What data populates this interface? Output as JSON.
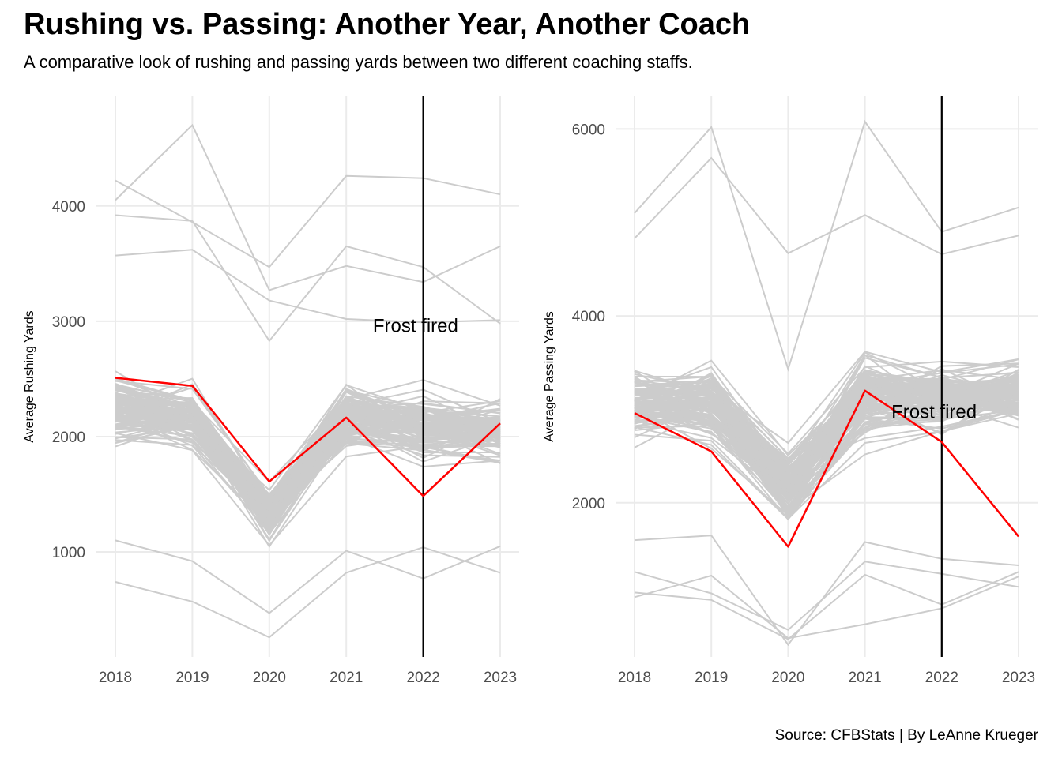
{
  "title": "Rushing vs. Passing: Another Year, Another Coach",
  "subtitle": "A comparative look of rushing and passing yards between two different coaching staffs.",
  "caption": "Source: CFBStats | By LeAnne Krueger",
  "colors": {
    "background_lines": "#cccccc",
    "highlight": "#ff0000",
    "event_line": "#000000",
    "grid": "#ebebeb",
    "tick_text": "#4d4d4d"
  },
  "chart_data": [
    {
      "type": "line",
      "title": "",
      "xlabel": "",
      "ylabel": "Average Rushing Yards",
      "x": [
        2018,
        2019,
        2020,
        2021,
        2022,
        2023
      ],
      "x_tick_labels": [
        "2018",
        "2019",
        "2020",
        "2021",
        "2022",
        "2023"
      ],
      "y_ticks": [
        1000,
        2000,
        3000,
        4000
      ],
      "y_tick_labels": [
        "1000",
        "2000",
        "3000",
        "4000"
      ],
      "ylim": [
        90,
        4950
      ],
      "grid": true,
      "highlight_series": {
        "values": [
          2510,
          2440,
          1610,
          2165,
          1485,
          2115
        ]
      },
      "background_series_count": 130,
      "background_series_sample": [
        [
          4220,
          3860,
          3470,
          4260,
          4240,
          4100
        ],
        [
          4050,
          4700,
          3270,
          3480,
          3340,
          3650
        ],
        [
          3920,
          3870,
          2830,
          3650,
          3470,
          2980
        ],
        [
          3570,
          3620,
          3180,
          3020,
          2990,
          3010
        ],
        [
          740,
          570,
          260,
          820,
          1040,
          820
        ],
        [
          1100,
          920,
          470,
          1010,
          770,
          1050
        ]
      ],
      "event": {
        "x": 2022,
        "label": "Frost fired",
        "label_x": 2021.9,
        "label_y": 2950
      }
    },
    {
      "type": "line",
      "title": "",
      "xlabel": "",
      "ylabel": "Average Passing Yards",
      "x": [
        2018,
        2019,
        2020,
        2021,
        2022,
        2023
      ],
      "x_tick_labels": [
        "2018",
        "2019",
        "2020",
        "2021",
        "2022",
        "2023"
      ],
      "y_ticks": [
        2000,
        4000,
        6000
      ],
      "y_tick_labels": [
        "2000",
        "4000",
        "6000"
      ],
      "ylim": [
        350,
        6350
      ],
      "grid": true,
      "highlight_series": {
        "values": [
          2960,
          2550,
          1530,
          3200,
          2650,
          1640
        ]
      },
      "background_series_count": 130,
      "background_series_sample": [
        [
          5100,
          6020,
          3430,
          6080,
          4900,
          5160
        ],
        [
          4830,
          5690,
          4670,
          5080,
          4660,
          4860
        ],
        [
          1040,
          960,
          540,
          1230,
          910,
          1260
        ],
        [
          990,
          1220,
          550,
          700,
          870,
          1210
        ],
        [
          1260,
          1030,
          640,
          1370,
          1240,
          1100
        ],
        [
          1600,
          1650,
          480,
          1580,
          1400,
          1330
        ]
      ],
      "event": {
        "x": 2022,
        "label": "Frost fired",
        "label_x": 2021.9,
        "label_y": 2960
      }
    }
  ]
}
